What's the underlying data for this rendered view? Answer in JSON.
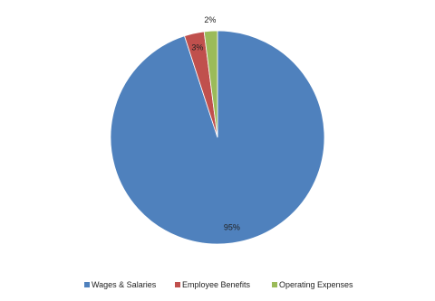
{
  "chart_data": {
    "type": "pie",
    "categories": [
      "Wages & Salaries",
      "Employee Benefits",
      "Operating Expenses"
    ],
    "values": [
      95,
      3,
      2
    ],
    "value_labels": [
      "95%",
      "3%",
      "2%"
    ],
    "colors": [
      "#4f81bd",
      "#c0504d",
      "#9bbb59"
    ],
    "legend": "bottom"
  }
}
